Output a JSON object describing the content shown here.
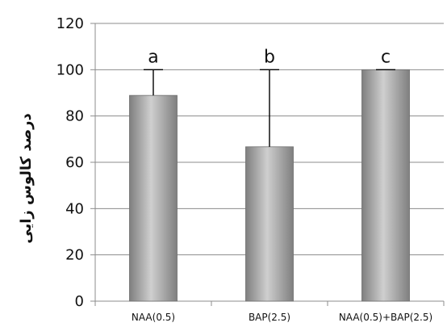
{
  "chart_data": {
    "type": "bar",
    "categories": [
      "NAA(0.5)",
      "BAP(2.5)",
      "NAA(0.5)+BAP(2.5)"
    ],
    "values": [
      88.9,
      66.7,
      100
    ],
    "error_upper": [
      100,
      100,
      100
    ],
    "significance_letters": [
      "a",
      "b",
      "c"
    ],
    "title": "",
    "xlabel": "",
    "ylabel": "درصد کالوس زایی",
    "ylim": [
      0,
      120
    ],
    "yticks": [
      0,
      20,
      40,
      60,
      80,
      100,
      120
    ],
    "grid": true,
    "legend": "none",
    "colors": {
      "bar_dark": "#7f7f7f",
      "bar_light": "#cfcfcf",
      "grid": "#8c8c8c",
      "axis": "#8c8c8c",
      "error_bar": "#000000"
    }
  }
}
